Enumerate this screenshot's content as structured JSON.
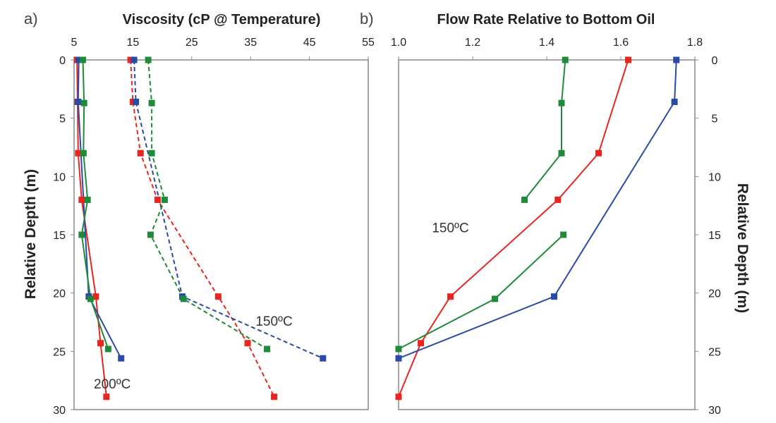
{
  "colors": {
    "red": "#e8251f",
    "blue": "#2a4aa8",
    "green": "#1f8a3a"
  },
  "chart_data": [
    {
      "type": "line",
      "panel_label": "a)",
      "title": "Viscosity (cP @ Temperature)",
      "ylabel": "Relative Depth (m)",
      "xlim": [
        5,
        55
      ],
      "ylim": [
        0,
        30
      ],
      "xticks": [
        5,
        15,
        25,
        35,
        45,
        55
      ],
      "yticks": [
        0,
        5,
        10,
        15,
        20,
        25,
        30
      ],
      "annotations": [
        {
          "text": "150ºC",
          "x": 39,
          "y": 22.8
        },
        {
          "text": "200ºC",
          "x": 11.5,
          "y": 28.2
        }
      ],
      "series": [
        {
          "name": "red 200C",
          "color": "red",
          "dash": false,
          "points": [
            [
              5.5,
              0
            ],
            [
              5.6,
              3.6
            ],
            [
              5.7,
              8
            ],
            [
              6.3,
              12
            ],
            [
              8.7,
              20.3
            ],
            [
              9.5,
              24.3
            ],
            [
              10.5,
              28.9
            ]
          ]
        },
        {
          "name": "blue 200C",
          "color": "blue",
          "dash": false,
          "points": [
            [
              5.8,
              0
            ],
            [
              5.7,
              3.6
            ],
            [
              7.5,
              20.3
            ],
            [
              13,
              25.6
            ]
          ]
        },
        {
          "name": "green 200C",
          "color": "green",
          "dash": false,
          "points": [
            [
              6.5,
              0
            ],
            [
              6.7,
              3.7
            ],
            [
              6.6,
              8
            ],
            [
              7.3,
              12
            ],
            [
              6.3,
              15
            ],
            [
              7.8,
              20.5
            ],
            [
              10.8,
              24.8
            ]
          ]
        },
        {
          "name": "red 150C",
          "color": "red",
          "dash": true,
          "points": [
            [
              14.6,
              0
            ],
            [
              15,
              3.6
            ],
            [
              16.3,
              8
            ],
            [
              19.2,
              12
            ],
            [
              29.5,
              20.3
            ],
            [
              34.5,
              24.3
            ],
            [
              39,
              28.9
            ]
          ]
        },
        {
          "name": "blue 150C",
          "color": "blue",
          "dash": true,
          "points": [
            [
              15.2,
              0
            ],
            [
              15.5,
              3.6
            ],
            [
              23.4,
              20.3
            ],
            [
              47.3,
              25.6
            ]
          ]
        },
        {
          "name": "green 150C",
          "color": "green",
          "dash": true,
          "points": [
            [
              17.6,
              0
            ],
            [
              18.2,
              3.7
            ],
            [
              18.2,
              8
            ],
            [
              20.4,
              12
            ],
            [
              18,
              15
            ],
            [
              23.6,
              20.5
            ],
            [
              37.8,
              24.8
            ]
          ]
        }
      ]
    },
    {
      "type": "line",
      "panel_label": "b)",
      "title": "Flow Rate Relative to Bottom Oil",
      "ylabel": "Relative Depth (m)",
      "xlim": [
        1.0,
        1.8
      ],
      "ylim": [
        0,
        30
      ],
      "xticks": [
        "1.0",
        "1.2",
        "1.4",
        "1.6",
        "1.8"
      ],
      "yticks": [
        0,
        5,
        10,
        15,
        20,
        25,
        30
      ],
      "annotations": [
        {
          "text": "150ºC",
          "x": 1.14,
          "y": 14.8
        }
      ],
      "series": [
        {
          "name": "red",
          "color": "red",
          "dash": false,
          "points": [
            [
              1.62,
              0
            ],
            [
              1.54,
              8
            ],
            [
              1.43,
              12
            ],
            [
              1.14,
              20.3
            ],
            [
              1.06,
              24.3
            ],
            [
              1.0,
              28.9
            ]
          ]
        },
        {
          "name": "blue",
          "color": "blue",
          "dash": false,
          "points": [
            [
              1.75,
              0
            ],
            [
              1.745,
              3.6
            ],
            [
              1.42,
              20.3
            ],
            [
              1.0,
              25.6
            ]
          ]
        },
        {
          "name": "green",
          "color": "green",
          "dash": false,
          "points": [
            [
              1.45,
              0
            ],
            [
              1.44,
              3.7
            ],
            [
              1.44,
              8
            ],
            [
              1.34,
              12
            ]
          ]
        },
        {
          "name": "green lower",
          "color": "green",
          "dash": false,
          "points": [
            [
              1.445,
              15
            ],
            [
              1.26,
              20.5
            ],
            [
              1.0,
              24.8
            ]
          ]
        }
      ]
    }
  ]
}
